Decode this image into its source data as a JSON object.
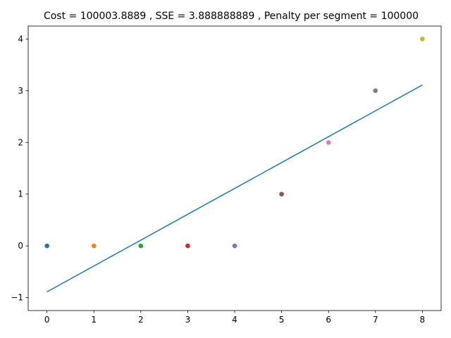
{
  "chart_data": {
    "type": "scatter",
    "title": "Cost = 100003.8889 , SSE = 3.888888889 , Penalty per segment = 100000",
    "xlabel": "",
    "ylabel": "",
    "xlim": [
      -0.4,
      8.4
    ],
    "ylim": [
      -1.25,
      4.25
    ],
    "xticks": [
      0,
      1,
      2,
      3,
      4,
      5,
      6,
      7,
      8
    ],
    "yticks": [
      -1,
      0,
      1,
      2,
      3,
      4
    ],
    "ytick_labels": [
      "−1",
      "0",
      "1",
      "2",
      "3",
      "4"
    ],
    "points": [
      {
        "x": 0,
        "y": 0,
        "color": "#1f77b4"
      },
      {
        "x": 1,
        "y": 0,
        "color": "#ff7f0e"
      },
      {
        "x": 2,
        "y": 0,
        "color": "#2ca02c"
      },
      {
        "x": 3,
        "y": 0,
        "color": "#d62728"
      },
      {
        "x": 4,
        "y": 0,
        "color": "#9467bd"
      },
      {
        "x": 5,
        "y": 1,
        "color": "#8c564b"
      },
      {
        "x": 6,
        "y": 2,
        "color": "#e377c2"
      },
      {
        "x": 7,
        "y": 3,
        "color": "#7f7f7f"
      },
      {
        "x": 8,
        "y": 4,
        "color": "#bcbd22"
      }
    ],
    "fit_line": {
      "x": [
        0,
        8
      ],
      "y": [
        -0.889,
        3.111
      ],
      "color": "#1f77b4"
    }
  }
}
